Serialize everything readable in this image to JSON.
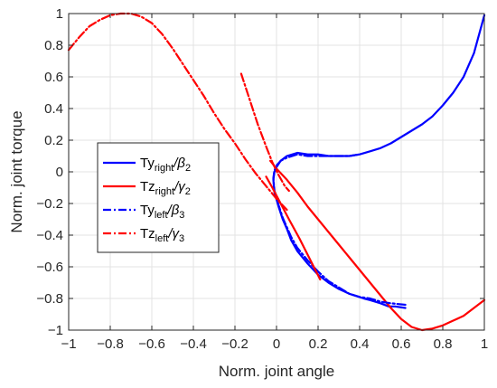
{
  "chart_data": {
    "type": "line",
    "title": "",
    "xlabel": "Norm. joint angle",
    "ylabel": "Norm. joint torque",
    "xlim": [
      -1,
      1
    ],
    "ylim": [
      -1,
      1
    ],
    "xticks": [
      -1,
      -0.8,
      -0.6,
      -0.4,
      -0.2,
      0,
      0.2,
      0.4,
      0.6,
      0.8,
      1
    ],
    "yticks": [
      -1,
      -0.8,
      -0.6,
      -0.4,
      -0.2,
      0,
      0.2,
      0.4,
      0.6,
      0.8,
      1
    ],
    "xtick_labels": [
      "−1",
      "−0.8",
      "−0.6",
      "−0.4",
      "−0.2",
      "0",
      "0.2",
      "0.4",
      "0.6",
      "0.8",
      "1"
    ],
    "ytick_labels": [
      "−1",
      "−0.8",
      "−0.6",
      "−0.4",
      "−0.2",
      "0",
      "0.2",
      "0.4",
      "0.6",
      "0.8",
      "1"
    ],
    "grid": true,
    "legend_position": "middle-left",
    "series": [
      {
        "name": "Ty_right/β_2",
        "legend_main": "Ty",
        "legend_sub": "right",
        "legend_tail": "/β",
        "legend_idx": "2",
        "color": "#0000ff",
        "style": "solid",
        "points": [
          [
            0.62,
            -0.86
          ],
          [
            0.57,
            -0.85
          ],
          [
            0.54,
            -0.85
          ],
          [
            0.5,
            -0.83
          ],
          [
            0.45,
            -0.81
          ],
          [
            0.42,
            -0.8
          ],
          [
            0.35,
            -0.77
          ],
          [
            0.3,
            -0.74
          ],
          [
            0.25,
            -0.7
          ],
          [
            0.2,
            -0.65
          ],
          [
            0.15,
            -0.58
          ],
          [
            0.1,
            -0.5
          ],
          [
            0.07,
            -0.43
          ],
          [
            0.05,
            -0.36
          ],
          [
            0.03,
            -0.3
          ],
          [
            0.01,
            -0.22
          ],
          [
            -0.01,
            -0.13
          ],
          [
            -0.015,
            -0.05
          ],
          [
            -0.01,
            0.0
          ],
          [
            0.0,
            0.03
          ],
          [
            0.02,
            0.07
          ],
          [
            0.05,
            0.1
          ],
          [
            0.1,
            0.12
          ],
          [
            0.15,
            0.11
          ],
          [
            0.2,
            0.11
          ],
          [
            0.25,
            0.1
          ],
          [
            0.3,
            0.1
          ],
          [
            0.35,
            0.1
          ],
          [
            0.4,
            0.11
          ],
          [
            0.45,
            0.13
          ],
          [
            0.5,
            0.15
          ],
          [
            0.55,
            0.18
          ],
          [
            0.6,
            0.22
          ],
          [
            0.65,
            0.26
          ],
          [
            0.7,
            0.3
          ],
          [
            0.75,
            0.35
          ],
          [
            0.8,
            0.42
          ],
          [
            0.85,
            0.5
          ],
          [
            0.9,
            0.6
          ],
          [
            0.95,
            0.75
          ],
          [
            1.0,
            0.99
          ]
        ]
      },
      {
        "name": "Tz_right/γ_2",
        "legend_main": "Tz",
        "legend_sub": "right",
        "legend_tail": "/γ",
        "legend_idx": "2",
        "color": "#ff0000",
        "style": "solid",
        "points": [
          [
            -0.03,
            0.07
          ],
          [
            0.0,
            0.02
          ],
          [
            0.05,
            -0.05
          ],
          [
            0.1,
            -0.13
          ],
          [
            0.15,
            -0.22
          ],
          [
            0.2,
            -0.3
          ],
          [
            0.25,
            -0.38
          ],
          [
            0.3,
            -0.46
          ],
          [
            0.35,
            -0.54
          ],
          [
            0.4,
            -0.62
          ],
          [
            0.45,
            -0.7
          ],
          [
            0.5,
            -0.78
          ],
          [
            0.55,
            -0.86
          ],
          [
            0.6,
            -0.93
          ],
          [
            0.65,
            -0.98
          ],
          [
            0.7,
            -1.0
          ],
          [
            0.75,
            -0.99
          ],
          [
            0.8,
            -0.97
          ],
          [
            0.85,
            -0.94
          ],
          [
            0.9,
            -0.91
          ],
          [
            0.95,
            -0.86
          ],
          [
            1.0,
            -0.81
          ]
        ]
      },
      {
        "name": "Ty_left/β_3",
        "legend_main": "Ty",
        "legend_sub": "left",
        "legend_tail": "/β",
        "legend_idx": "3",
        "color": "#0000ff",
        "style": "dashdot",
        "points": [
          [
            0.62,
            -0.84
          ],
          [
            0.55,
            -0.83
          ],
          [
            0.5,
            -0.82
          ],
          [
            0.45,
            -0.8
          ],
          [
            0.4,
            -0.79
          ],
          [
            0.35,
            -0.77
          ],
          [
            0.3,
            -0.73
          ],
          [
            0.25,
            -0.69
          ],
          [
            0.2,
            -0.63
          ],
          [
            0.15,
            -0.56
          ],
          [
            0.1,
            -0.48
          ],
          [
            0.07,
            -0.41
          ],
          [
            0.05,
            -0.35
          ],
          [
            0.03,
            -0.29
          ],
          [
            0.01,
            -0.21
          ],
          [
            -0.01,
            -0.12
          ],
          [
            -0.015,
            -0.04
          ],
          [
            -0.01,
            0.01
          ],
          [
            0.0,
            0.04
          ],
          [
            0.02,
            0.07
          ],
          [
            0.05,
            0.09
          ],
          [
            0.1,
            0.11
          ],
          [
            0.15,
            0.1
          ],
          [
            0.2,
            0.1
          ],
          [
            0.25,
            0.1
          ],
          [
            0.3,
            0.1
          ],
          [
            0.35,
            0.1
          ],
          [
            0.4,
            0.11
          ]
        ]
      },
      {
        "name": "Tz_left/γ_3",
        "legend_main": "Tz",
        "legend_sub": "left",
        "legend_tail": "/γ",
        "legend_idx": "3",
        "color": "#ff0000",
        "style": "dashdot",
        "points": [
          [
            -1.0,
            0.77
          ],
          [
            -0.95,
            0.85
          ],
          [
            -0.9,
            0.92
          ],
          [
            -0.85,
            0.96
          ],
          [
            -0.8,
            0.99
          ],
          [
            -0.75,
            1.0
          ],
          [
            -0.7,
            1.0
          ],
          [
            -0.65,
            0.98
          ],
          [
            -0.6,
            0.94
          ],
          [
            -0.55,
            0.87
          ],
          [
            -0.5,
            0.78
          ],
          [
            -0.45,
            0.68
          ],
          [
            -0.4,
            0.58
          ],
          [
            -0.35,
            0.48
          ],
          [
            -0.3,
            0.37
          ],
          [
            -0.25,
            0.27
          ],
          [
            -0.2,
            0.18
          ],
          [
            -0.15,
            0.08
          ],
          [
            -0.1,
            -0.01
          ],
          [
            -0.05,
            -0.09
          ],
          [
            0.0,
            -0.17
          ],
          [
            0.05,
            -0.24
          ]
        ]
      },
      {
        "name": "",
        "legend_main": "",
        "legend_sub": "",
        "legend_tail": "",
        "legend_idx": "",
        "color": "#ff0000",
        "style": "solid",
        "points": [
          [
            0.21,
            -0.68
          ],
          [
            0.16,
            -0.55
          ],
          [
            0.11,
            -0.42
          ],
          [
            0.06,
            -0.3
          ],
          [
            0.02,
            -0.2
          ],
          [
            -0.02,
            -0.1
          ],
          [
            -0.05,
            -0.03
          ]
        ]
      },
      {
        "name": "",
        "legend_main": "",
        "legend_sub": "",
        "legend_tail": "",
        "legend_idx": "",
        "color": "#ff0000",
        "style": "dashdot",
        "points": [
          [
            -0.17,
            0.62
          ],
          [
            -0.13,
            0.46
          ],
          [
            -0.09,
            0.3
          ],
          [
            -0.05,
            0.16
          ],
          [
            -0.02,
            0.06
          ],
          [
            0.01,
            -0.02
          ],
          [
            0.04,
            -0.09
          ],
          [
            0.06,
            -0.12
          ]
        ]
      }
    ]
  }
}
